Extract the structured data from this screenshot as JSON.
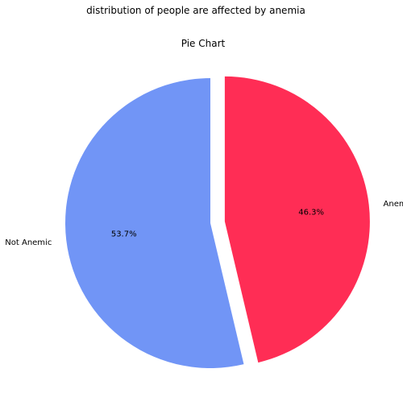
{
  "chart_data": {
    "type": "pie",
    "suptitle": "distribution of people are affected by anemia",
    "title": "Pie Chart",
    "labels": [
      "Anemic",
      "Not Anemic"
    ],
    "values": [
      46.3,
      53.7
    ],
    "autopct_labels": [
      "46.3%",
      "53.7%"
    ],
    "colors": [
      "#ff2d55",
      "#7195f6"
    ],
    "explode": [
      0.1,
      0
    ],
    "start_angle_deg": 90,
    "direction": "clockwise"
  }
}
